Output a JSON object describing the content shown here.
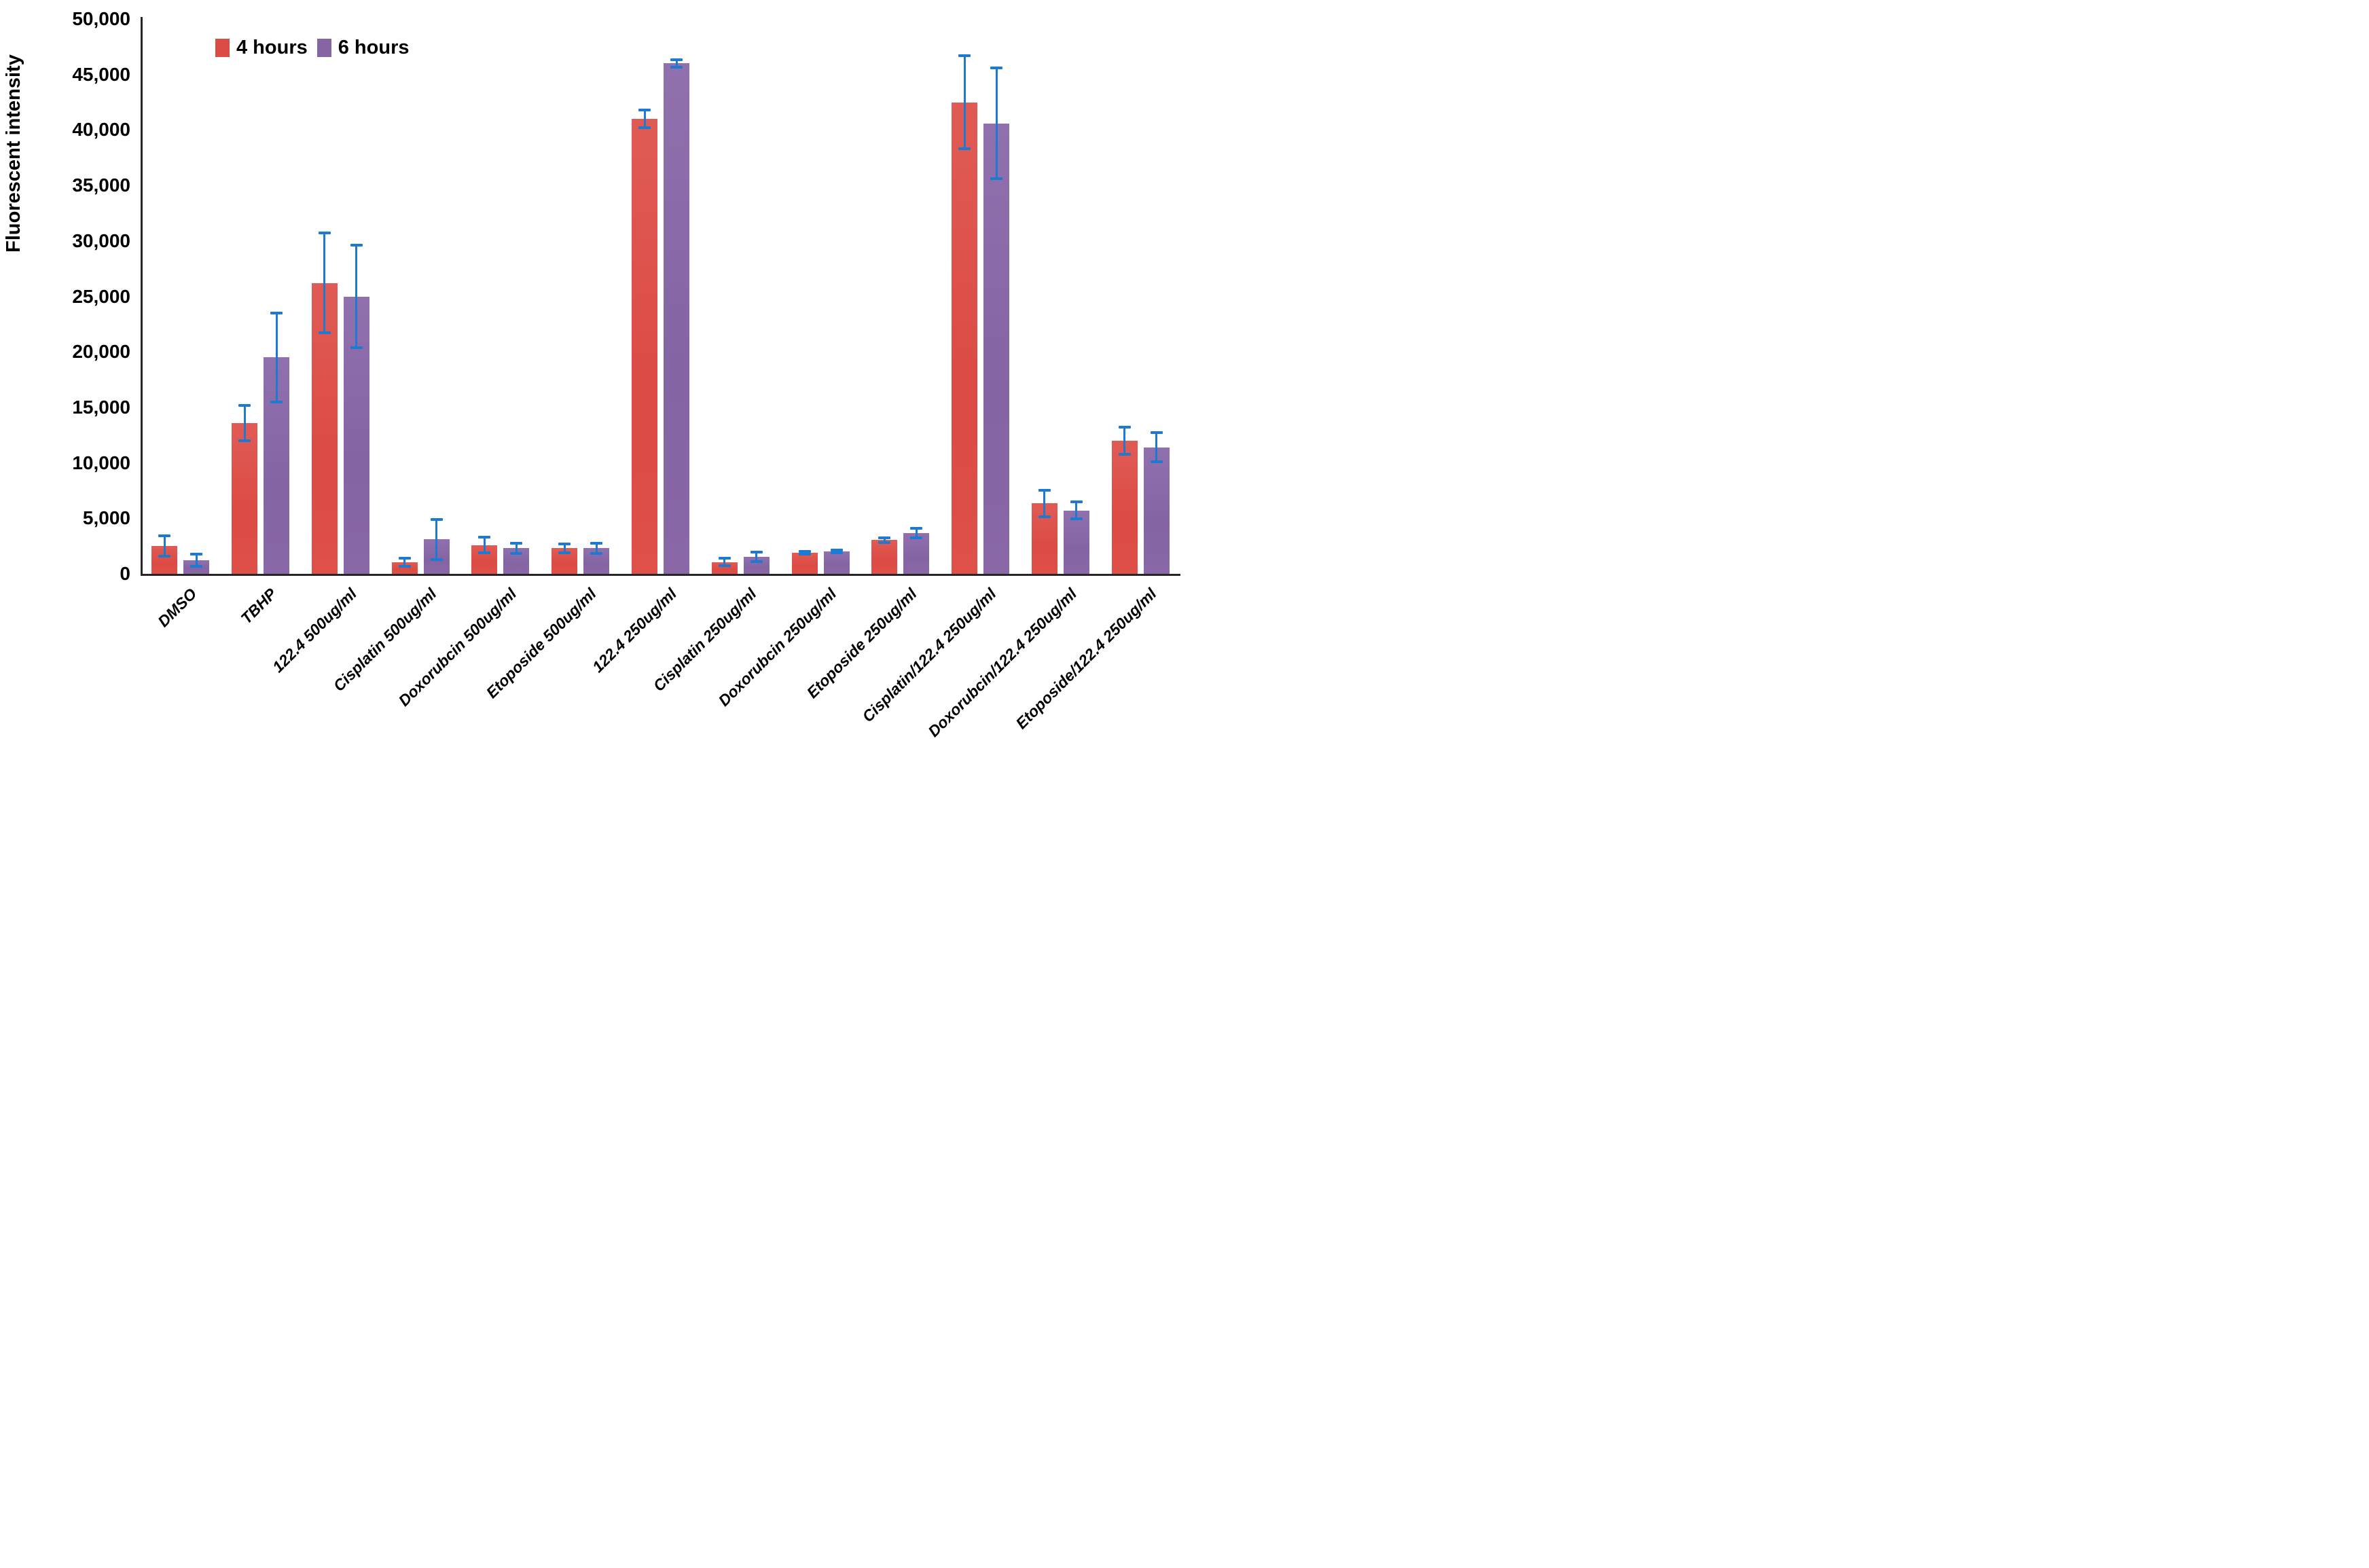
{
  "chart_data": {
    "type": "bar",
    "title": "",
    "xlabel": "",
    "ylabel": "Fluorescent intensity",
    "ylim": [
      0,
      50000
    ],
    "ytick_step": 5000,
    "grid": false,
    "legend_position": "top-left-inside",
    "error_bars": true,
    "error_bar_color": "#1e7ad0",
    "axis_color": "#262626",
    "categories": [
      "DMSO",
      "TBHP",
      "122.4 500ug/ml",
      "Cisplatin 500ug/ml",
      "Doxorubcin 500ug/ml",
      "Etoposide 500ug/ml",
      "122.4 250ug/ml",
      "Cisplatin 250ug/ml",
      "Doxorubcin 250ug/ml",
      "Etoposide 250ug/ml",
      "Cisplatin/122.4 250ug/ml",
      "Doxorubcin/122.4 250ug/ml",
      "Etoposide/122.4 250ug/ml"
    ],
    "series": [
      {
        "name": "4 hours",
        "color": "#dc4b44",
        "values": [
          2500,
          13600,
          26200,
          1050,
          2600,
          2300,
          41000,
          1050,
          1900,
          3050,
          42500,
          6350,
          12000
        ],
        "errors": [
          900,
          1600,
          4500,
          350,
          700,
          400,
          800,
          340,
          150,
          220,
          4200,
          1200,
          1200
        ]
      },
      {
        "name": "6 hours",
        "color": "#8565a4",
        "values": [
          1250,
          19500,
          25000,
          3100,
          2300,
          2300,
          46000,
          1550,
          2000,
          3650,
          40600,
          5700,
          11400
        ],
        "errors": [
          550,
          4000,
          4650,
          1800,
          450,
          450,
          350,
          420,
          120,
          430,
          5000,
          770,
          1300
        ]
      }
    ]
  }
}
